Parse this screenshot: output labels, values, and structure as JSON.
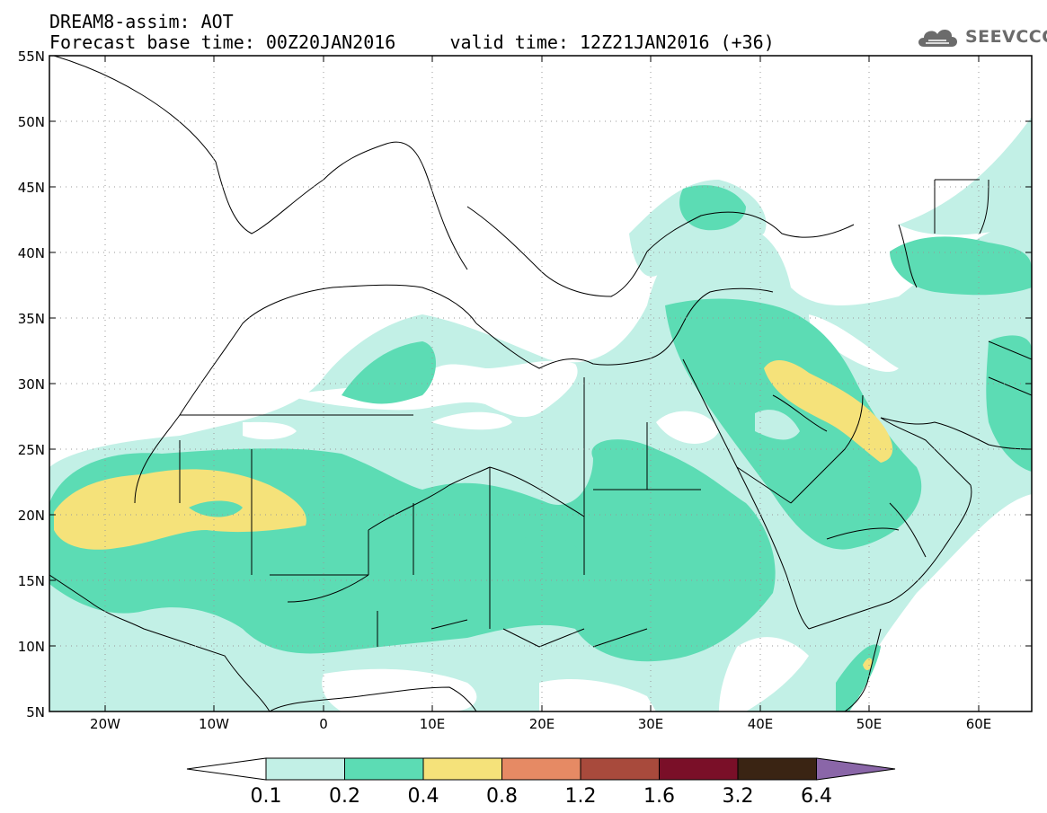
{
  "title": {
    "line1": "DREAM8-assim: AOT",
    "line2": "Forecast base time: 00Z20JAN2016     valid time: 12Z21JAN2016 (+36)"
  },
  "logo": {
    "icon": "cloud-icon",
    "text": "SEEVCCC"
  },
  "map": {
    "lat_labels": [
      "55N",
      "50N",
      "45N",
      "40N",
      "35N",
      "30N",
      "25N",
      "20N",
      "15N",
      "10N",
      "5N"
    ],
    "lon_labels": [
      "20W",
      "10W",
      "0",
      "10E",
      "20E",
      "30E",
      "40E",
      "50E",
      "60E"
    ],
    "grid": "dotted"
  },
  "colorbar": {
    "labels": [
      "0.1",
      "0.2",
      "0.4",
      "0.8",
      "1.2",
      "1.6",
      "3.2",
      "6.4"
    ],
    "colors": [
      "#ffffff",
      "#c2f0e6",
      "#5cdcb4",
      "#f5e27a",
      "#e68a64",
      "#a84a3c",
      "#7a0f28",
      "#3a2413",
      "#8a66a8"
    ]
  },
  "colors": {
    "low": "#c2f0e6",
    "mid": "#5cdcb4",
    "high": "#f5e27a",
    "border": "#000000"
  }
}
